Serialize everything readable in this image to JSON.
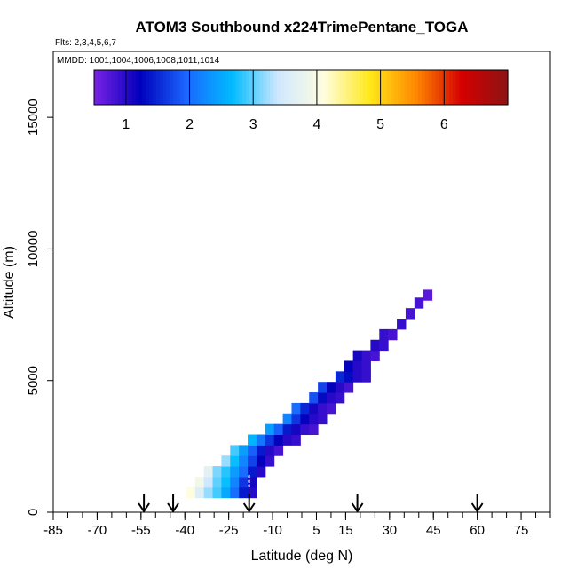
{
  "chart_data": {
    "type": "heatmap",
    "title": "ATOM3 Southbound x224TrimePentane_TOGA",
    "subtitle_flights": "Flts: 2,3,4,5,6,7",
    "subtitle_dates": "MMDD: 1001,1004,1006,1008,1011,1014",
    "xlabel": "Latitude (deg N)",
    "ylabel": "Altitude (m)",
    "xlim": [
      -85,
      85
    ],
    "ylim": [
      0,
      17500
    ],
    "x_tick_labels": [
      "-85",
      "-70",
      "-55",
      "-40",
      "-25",
      "-10",
      "5",
      "15",
      "30",
      "45",
      "60",
      "75"
    ],
    "x_tick_values": [
      -85,
      -70,
      -55,
      -40,
      -25,
      -10,
      5,
      15,
      30,
      45,
      60,
      75
    ],
    "y_tick_labels": [
      "0",
      "5000",
      "10000",
      "15000"
    ],
    "y_tick_values": [
      0,
      5000,
      10000,
      15000
    ],
    "colorbar": {
      "range": [
        0.5,
        7.0
      ],
      "tick_labels": [
        "1",
        "2",
        "3",
        "4",
        "5",
        "6"
      ],
      "tick_values": [
        1,
        2,
        3,
        4,
        5,
        6
      ],
      "colors": [
        "#7a22e6",
        "#0000bb",
        "#1a66ff",
        "#00bbff",
        "#cfe8ff",
        "#fffde0",
        "#ffe81a",
        "#ff8800",
        "#d40000",
        "#8c1414"
      ]
    },
    "arrow_latitudes": [
      -54,
      -44,
      -18,
      19,
      60
    ],
    "profile_note_symbols": [
      "o",
      "o",
      "o"
    ],
    "cells": [
      {
        "alt": 750,
        "lats": [
          -38,
          -35,
          -32,
          -29,
          -26,
          -23,
          -20,
          -17
        ],
        "vals": [
          4.1,
          3.6,
          3.2,
          2.9,
          2.5,
          2.0,
          1.4,
          1.0
        ]
      },
      {
        "alt": 1150,
        "lats": [
          -35,
          -32,
          -29,
          -26,
          -23,
          -20,
          -17
        ],
        "vals": [
          3.9,
          3.4,
          3.0,
          2.7,
          2.2,
          1.6,
          1.1
        ]
      },
      {
        "alt": 1550,
        "lats": [
          -32,
          -29,
          -26,
          -23,
          -20,
          -17,
          -14
        ],
        "vals": [
          3.7,
          3.1,
          2.8,
          2.4,
          2.0,
          1.4,
          1.0
        ]
      },
      {
        "alt": 1950,
        "lats": [
          -26,
          -23,
          -20,
          -17,
          -14,
          -11
        ],
        "vals": [
          3.2,
          2.7,
          2.2,
          1.7,
          1.2,
          0.9
        ]
      },
      {
        "alt": 2350,
        "lats": [
          -23,
          -20,
          -17,
          -14,
          -11,
          -8
        ],
        "vals": [
          2.9,
          2.4,
          1.9,
          1.4,
          1.0,
          0.8
        ]
      },
      {
        "alt": 2750,
        "lats": [
          -17,
          -14,
          -11,
          -8,
          -5,
          -2
        ],
        "vals": [
          2.6,
          2.1,
          1.6,
          1.2,
          1.0,
          0.9
        ]
      },
      {
        "alt": 3150,
        "lats": [
          -11,
          -8,
          -5,
          -2,
          1,
          4
        ],
        "vals": [
          2.4,
          1.9,
          1.4,
          1.1,
          0.9,
          0.8
        ]
      },
      {
        "alt": 3550,
        "lats": [
          -5,
          -2,
          1,
          4,
          7
        ],
        "vals": [
          2.2,
          1.6,
          1.2,
          1.0,
          0.9
        ]
      },
      {
        "alt": 3950,
        "lats": [
          -2,
          1,
          4,
          7,
          10
        ],
        "vals": [
          2.0,
          1.5,
          1.1,
          0.9,
          0.8
        ]
      },
      {
        "alt": 4350,
        "lats": [
          4,
          7,
          10,
          13
        ],
        "vals": [
          1.8,
          1.3,
          1.0,
          0.9
        ]
      },
      {
        "alt": 4750,
        "lats": [
          7,
          10,
          13,
          16
        ],
        "vals": [
          1.7,
          1.2,
          1.0,
          0.8
        ]
      },
      {
        "alt": 5150,
        "lats": [
          13,
          16,
          19,
          22
        ],
        "vals": [
          1.5,
          1.3,
          1.0,
          0.9
        ]
      },
      {
        "alt": 5550,
        "lats": [
          16,
          19,
          22
        ],
        "vals": [
          1.2,
          1.0,
          0.9
        ]
      },
      {
        "alt": 5950,
        "lats": [
          19,
          22,
          25
        ],
        "vals": [
          1.1,
          0.9,
          0.8
        ]
      },
      {
        "alt": 6350,
        "lats": [
          25,
          28
        ],
        "vals": [
          1.0,
          0.9
        ]
      },
      {
        "alt": 6750,
        "lats": [
          28,
          31
        ],
        "vals": [
          0.9,
          0.8
        ]
      },
      {
        "alt": 7150,
        "lats": [
          34
        ],
        "vals": [
          0.9
        ]
      },
      {
        "alt": 7550,
        "lats": [
          37
        ],
        "vals": [
          0.8
        ]
      },
      {
        "alt": 7950,
        "lats": [
          40
        ],
        "vals": [
          0.8
        ]
      },
      {
        "alt": 8250,
        "lats": [
          43
        ],
        "vals": [
          0.7
        ]
      }
    ]
  }
}
